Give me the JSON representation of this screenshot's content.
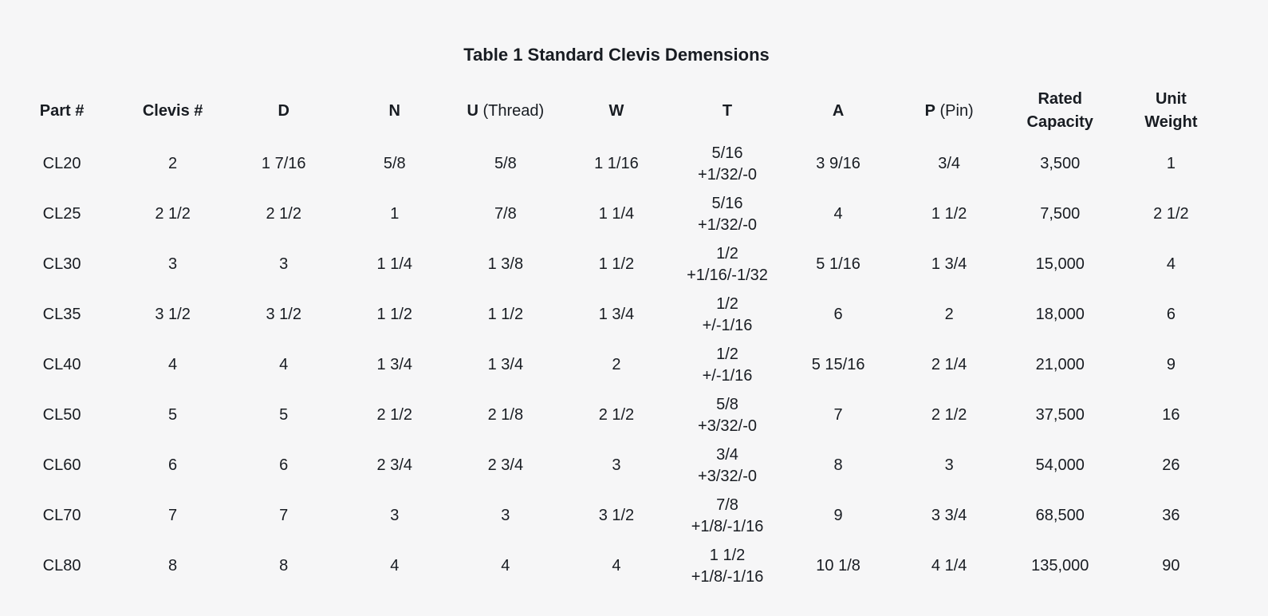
{
  "title": "Table 1 Standard Clevis Demensions",
  "colors": {
    "background": "#f6f6f7",
    "text": "#181c22"
  },
  "chart_data": {
    "type": "table",
    "title": "Table 1 Standard Clevis Demensions",
    "columns": [
      "Part #",
      "Clevis #",
      "D",
      "N",
      "U (Thread)",
      "W",
      "T",
      "A",
      "P (Pin)",
      "Rated Capacity",
      "Unit Weight"
    ],
    "rows": [
      [
        "CL20",
        "2",
        "1 7/16",
        "5/8",
        "5/8",
        "1 1/16",
        "5/16 +1/32/-0",
        "3 9/16",
        "3/4",
        "3,500",
        "1"
      ],
      [
        "CL25",
        "2 1/2",
        "2 1/2",
        "1",
        "7/8",
        "1 1/4",
        "5/16 +1/32/-0",
        "4",
        "1 1/2",
        "7,500",
        "2 1/2"
      ],
      [
        "CL30",
        "3",
        "3",
        "1 1/4",
        "1 3/8",
        "1 1/2",
        "1/2 +1/16/-1/32",
        "5 1/16",
        "1 3/4",
        "15,000",
        "4"
      ],
      [
        "CL35",
        "3 1/2",
        "3 1/2",
        "1 1/2",
        "1 1/2",
        "1 3/4",
        "1/2 +/-1/16",
        "6",
        "2",
        "18,000",
        "6"
      ],
      [
        "CL40",
        "4",
        "4",
        "1 3/4",
        "1 3/4",
        "2",
        "1/2 +/-1/16",
        "5 15/16",
        "2 1/4",
        "21,000",
        "9"
      ],
      [
        "CL50",
        "5",
        "5",
        "2 1/2",
        "2 1/8",
        "2 1/2",
        "5/8 +3/32/-0",
        "7",
        "2 1/2",
        "37,500",
        "16"
      ],
      [
        "CL60",
        "6",
        "6",
        "2 3/4",
        "2 3/4",
        "3",
        "3/4 +3/32/-0",
        "8",
        "3",
        "54,000",
        "26"
      ],
      [
        "CL70",
        "7",
        "7",
        "3",
        "3",
        "3 1/2",
        "7/8 +1/8/-1/16",
        "9",
        "3 3/4",
        "68,500",
        "36"
      ],
      [
        "CL80",
        "8",
        "8",
        "4",
        "4",
        "4",
        "1 1/2 +1/8/-1/16",
        "10 1/8",
        "4 1/4",
        "135,000",
        "90"
      ]
    ]
  },
  "table": {
    "header": [
      {
        "bold": "Part #"
      },
      {
        "bold": "Clevis #"
      },
      {
        "bold": "D"
      },
      {
        "bold": "N"
      },
      {
        "bold": "U",
        "normal": "(Thread)"
      },
      {
        "bold": "W"
      },
      {
        "bold": "T"
      },
      {
        "bold": "A"
      },
      {
        "bold": "P",
        "normal": "(Pin)"
      },
      {
        "bold_lines": [
          "Rated",
          "Capacity"
        ]
      },
      {
        "bold_lines": [
          "Unit",
          "Weight"
        ]
      }
    ],
    "rows": [
      [
        "CL20",
        "2",
        "1 7/16",
        "5/8",
        "5/8",
        "1 1/16",
        [
          "5/16",
          "+1/32/-0"
        ],
        "3 9/16",
        "3/4",
        "3,500",
        "1"
      ],
      [
        "CL25",
        "2 1/2",
        "2 1/2",
        "1",
        "7/8",
        "1 1/4",
        [
          "5/16",
          "+1/32/-0"
        ],
        "4",
        "1 1/2",
        "7,500",
        "2 1/2"
      ],
      [
        "CL30",
        "3",
        "3",
        "1 1/4",
        "1 3/8",
        "1 1/2",
        [
          "1/2",
          "+1/16/-1/32"
        ],
        "5 1/16",
        "1 3/4",
        "15,000",
        "4"
      ],
      [
        "CL35",
        "3 1/2",
        "3 1/2",
        "1 1/2",
        "1 1/2",
        "1 3/4",
        [
          "1/2",
          "+/-1/16"
        ],
        "6",
        "2",
        "18,000",
        "6"
      ],
      [
        "CL40",
        "4",
        "4",
        "1 3/4",
        "1 3/4",
        "2",
        [
          "1/2",
          "+/-1/16"
        ],
        "5 15/16",
        "2 1/4",
        "21,000",
        "9"
      ],
      [
        "CL50",
        "5",
        "5",
        "2 1/2",
        "2 1/8",
        "2 1/2",
        [
          "5/8",
          "+3/32/-0"
        ],
        "7",
        "2 1/2",
        "37,500",
        "16"
      ],
      [
        "CL60",
        "6",
        "6",
        "2 3/4",
        "2 3/4",
        "3",
        [
          "3/4",
          "+3/32/-0"
        ],
        "8",
        "3",
        "54,000",
        "26"
      ],
      [
        "CL70",
        "7",
        "7",
        "3",
        "3",
        "3 1/2",
        [
          "7/8",
          "+1/8/-1/16"
        ],
        "9",
        "3 3/4",
        "68,500",
        "36"
      ],
      [
        "CL80",
        "8",
        "8",
        "4",
        "4",
        "4",
        [
          "1 1/2",
          "+1/8/-1/16"
        ],
        "10 1/8",
        "4 1/4",
        "135,000",
        "90"
      ]
    ]
  }
}
